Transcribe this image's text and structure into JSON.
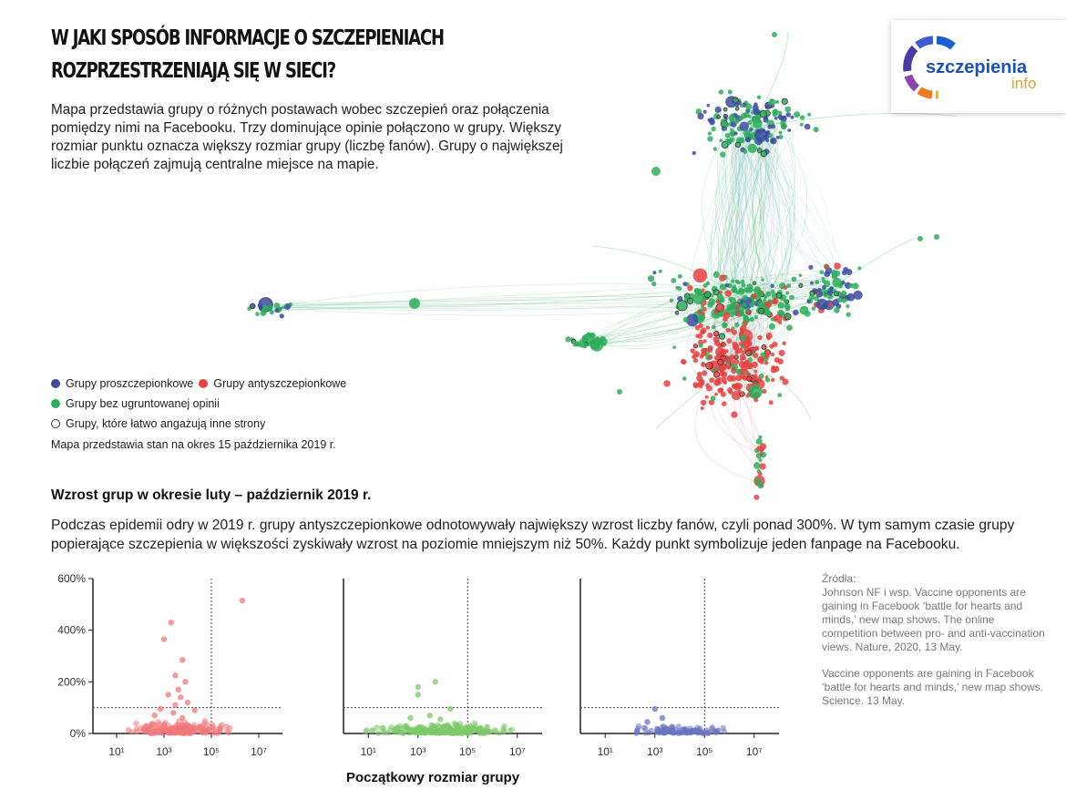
{
  "header": {
    "title_line1": "W JAKI SPOSÓB INFORMACJE O SZCZEPIENIACH",
    "title_line2": "ROZPRZESTRZENIAJĄ SIĘ W SIECI?",
    "intro": "Mapa przedstawia grupy o różnych postawach wobec szczepień oraz połączenia pomiędzy nimi na Facebooku. Trzy dominujące opinie połączono w grupy. Większy rozmiar punktu oznacza większy rozmiar grupy (liczbę fanów). Grupy o największej liczbie połączeń zajmują centralne miejsce na mapie."
  },
  "logo": {
    "word1": "szczepienia",
    "word2": "info"
  },
  "legend": {
    "pro": "Grupy proszczepionkowe",
    "anti": "Grupy antyszczepionkowe",
    "neutral": "Grupy bez ugruntowanej opinii",
    "engaging": "Grupy, które łatwo angażują inne strony",
    "date_note": "Mapa przedstawia stan na okres 15 października 2019 r."
  },
  "colors": {
    "pro": "#3b4aa3",
    "anti": "#e8413f",
    "neutral": "#2eae5b",
    "anti_light": "#f0787a",
    "neutral_light": "#7ec86a",
    "pro_light": "#6a74c0"
  },
  "growth": {
    "title": "Wzrost grup w okresie luty – październik 2019 r.",
    "paragraph": "Podczas epidemii odry w 2019 r. grupy antyszczepionkowe odnotowywały największy wzrost liczby fanów, czyli ponad 300%. W tym samym czasie grupy popierające szczepienia w większości zyskiwały wzrost na poziomie mniejszym niż 50%. Każdy punkt symbolizuje jeden fanpage na Facebooku.",
    "xlabel": "Początkowy rozmiar grupy"
  },
  "sources": {
    "heading": "Źródła:",
    "ref1": "Johnson NF i wsp.  Vaccine opponents are gaining in Facebook ‘battle for hearts and minds,’ new map shows. The online competition between pro- and anti-vaccination views. Nature, 2020, 13 May.",
    "ref2": "Vaccine opponents are gaining in Facebook ‘battle for hearts and minds,’ new map shows. Science. 13 May."
  },
  "chart_data": [
    {
      "type": "scatter",
      "series_group": "anti",
      "xscale": "log",
      "xlim": [
        1,
        100000000
      ],
      "ylim": [
        0,
        600
      ],
      "x_ticks": [
        "10¹",
        "10³",
        "10⁵",
        "10⁷"
      ],
      "y_ticks": [
        "0%",
        "200%",
        "400%",
        "600%"
      ],
      "reference_lines": {
        "x": 100000,
        "y": 100
      },
      "points": [
        [
          2000000,
          515
        ],
        [
          2000,
          430
        ],
        [
          1000,
          365
        ],
        [
          6000,
          285
        ],
        [
          3000,
          225
        ],
        [
          8000,
          200
        ],
        [
          4000,
          170
        ],
        [
          1500,
          150
        ],
        [
          5000,
          140
        ],
        [
          10000,
          120
        ],
        [
          3000,
          110
        ],
        [
          700,
          95
        ],
        [
          20000,
          90
        ],
        [
          2500,
          80
        ],
        [
          400,
          70
        ],
        [
          6000,
          60
        ]
      ],
      "cluster": {
        "x_range": [
          10,
          3000000
        ],
        "y_range": [
          0,
          60
        ],
        "count": 200
      }
    },
    {
      "type": "scatter",
      "series_group": "neutral",
      "xscale": "log",
      "xlim": [
        1,
        100000000
      ],
      "ylim": [
        0,
        600
      ],
      "x_ticks": [
        "10¹",
        "10³",
        "10⁵",
        "10⁷"
      ],
      "reference_lines": {
        "x": 100000,
        "y": 100
      },
      "points": [
        [
          1000,
          180
        ],
        [
          5000,
          200
        ],
        [
          1000,
          150
        ],
        [
          20000,
          95
        ],
        [
          3000,
          70
        ],
        [
          500,
          60
        ],
        [
          8000,
          55
        ]
      ],
      "cluster": {
        "x_range": [
          3,
          30000000
        ],
        "y_range": [
          0,
          45
        ],
        "count": 260
      }
    },
    {
      "type": "scatter",
      "series_group": "pro",
      "xscale": "log",
      "xlim": [
        1,
        100000000
      ],
      "ylim": [
        0,
        600
      ],
      "x_ticks": [
        "10¹",
        "10³",
        "10⁵",
        "10⁷"
      ],
      "reference_lines": {
        "x": 100000,
        "y": 100
      },
      "points": [
        [
          1000,
          95
        ],
        [
          2000,
          60
        ],
        [
          500,
          45
        ]
      ],
      "cluster": {
        "x_range": [
          50,
          2000000
        ],
        "y_range": [
          0,
          35
        ],
        "count": 110
      }
    }
  ]
}
